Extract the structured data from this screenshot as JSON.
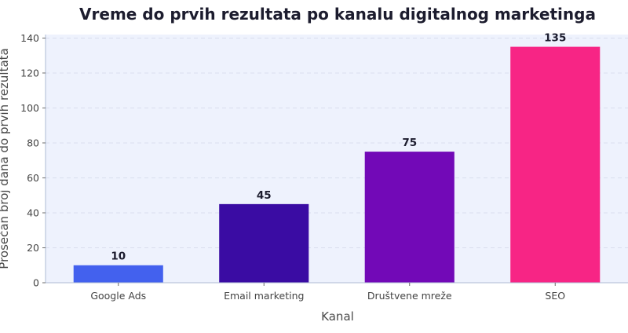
{
  "chart_data": {
    "type": "bar",
    "title": "Vreme do prvih rezultata po kanalu digitalnog marketinga",
    "xlabel": "Kanal",
    "ylabel": "Prosečan broj dana do prvih rezultata",
    "categories": [
      "Google Ads",
      "Email marketing",
      "Društvene mreže",
      "SEO"
    ],
    "values": [
      10,
      45,
      75,
      135
    ],
    "data_labels": [
      "10",
      "45",
      "75",
      "135"
    ],
    "bar_colors": [
      "#4361ee",
      "#3a0ca3",
      "#7209b7",
      "#f72585"
    ],
    "ylim": [
      0,
      142
    ],
    "yticks": [
      0,
      20,
      40,
      60,
      80,
      100,
      120,
      140
    ],
    "grid": "horizontal, dashed",
    "legend": "none",
    "plot_background": "#eef2fd"
  }
}
